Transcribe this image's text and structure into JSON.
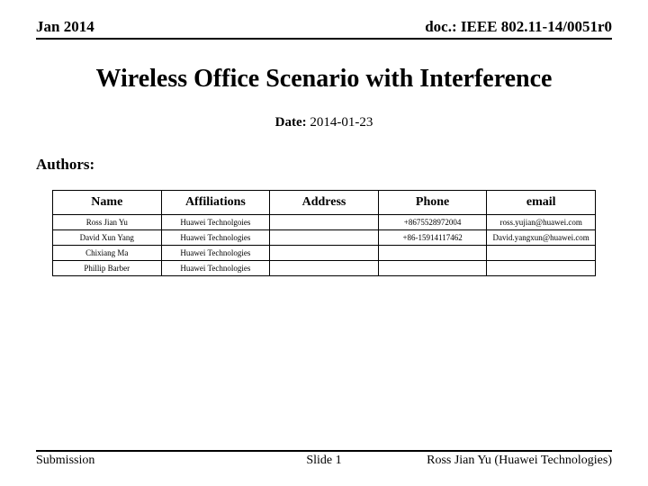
{
  "header": {
    "left": "Jan 2014",
    "right": "doc.: IEEE 802.11-14/0051r0"
  },
  "title": "Wireless Office Scenario with Interference",
  "date": {
    "label": "Date:",
    "value": "2014-01-23"
  },
  "authors_label": "Authors:",
  "table": {
    "columns": [
      "Name",
      "Affiliations",
      "Address",
      "Phone",
      "email"
    ],
    "rows": [
      [
        "Ross Jian Yu",
        "Huawei Technolgoies",
        "",
        "+8675528972004",
        "ross.yujian@huawei.com"
      ],
      [
        "David Xun Yang",
        "Huawei Technologies",
        "",
        "+86-15914117462",
        "David.yangxun@huawei.com"
      ],
      [
        "Chixiang Ma",
        "Huawei Technologies",
        "",
        "",
        ""
      ],
      [
        "Phillip Barber",
        "Huawei Technologies",
        "",
        "",
        ""
      ]
    ]
  },
  "footer": {
    "left": "Submission",
    "center": "Slide 1",
    "right": "Ross Jian Yu (Huawei Technologies)"
  },
  "style": {
    "page_bg": "#ffffff",
    "text_color": "#000000",
    "rule_color": "#000000",
    "title_fontsize": 28,
    "header_fontsize": 17,
    "body_fontsize": 15,
    "table_header_fontsize": 14,
    "table_cell_fontsize": 9,
    "footer_fontsize": 14,
    "font_family": "Times New Roman"
  }
}
